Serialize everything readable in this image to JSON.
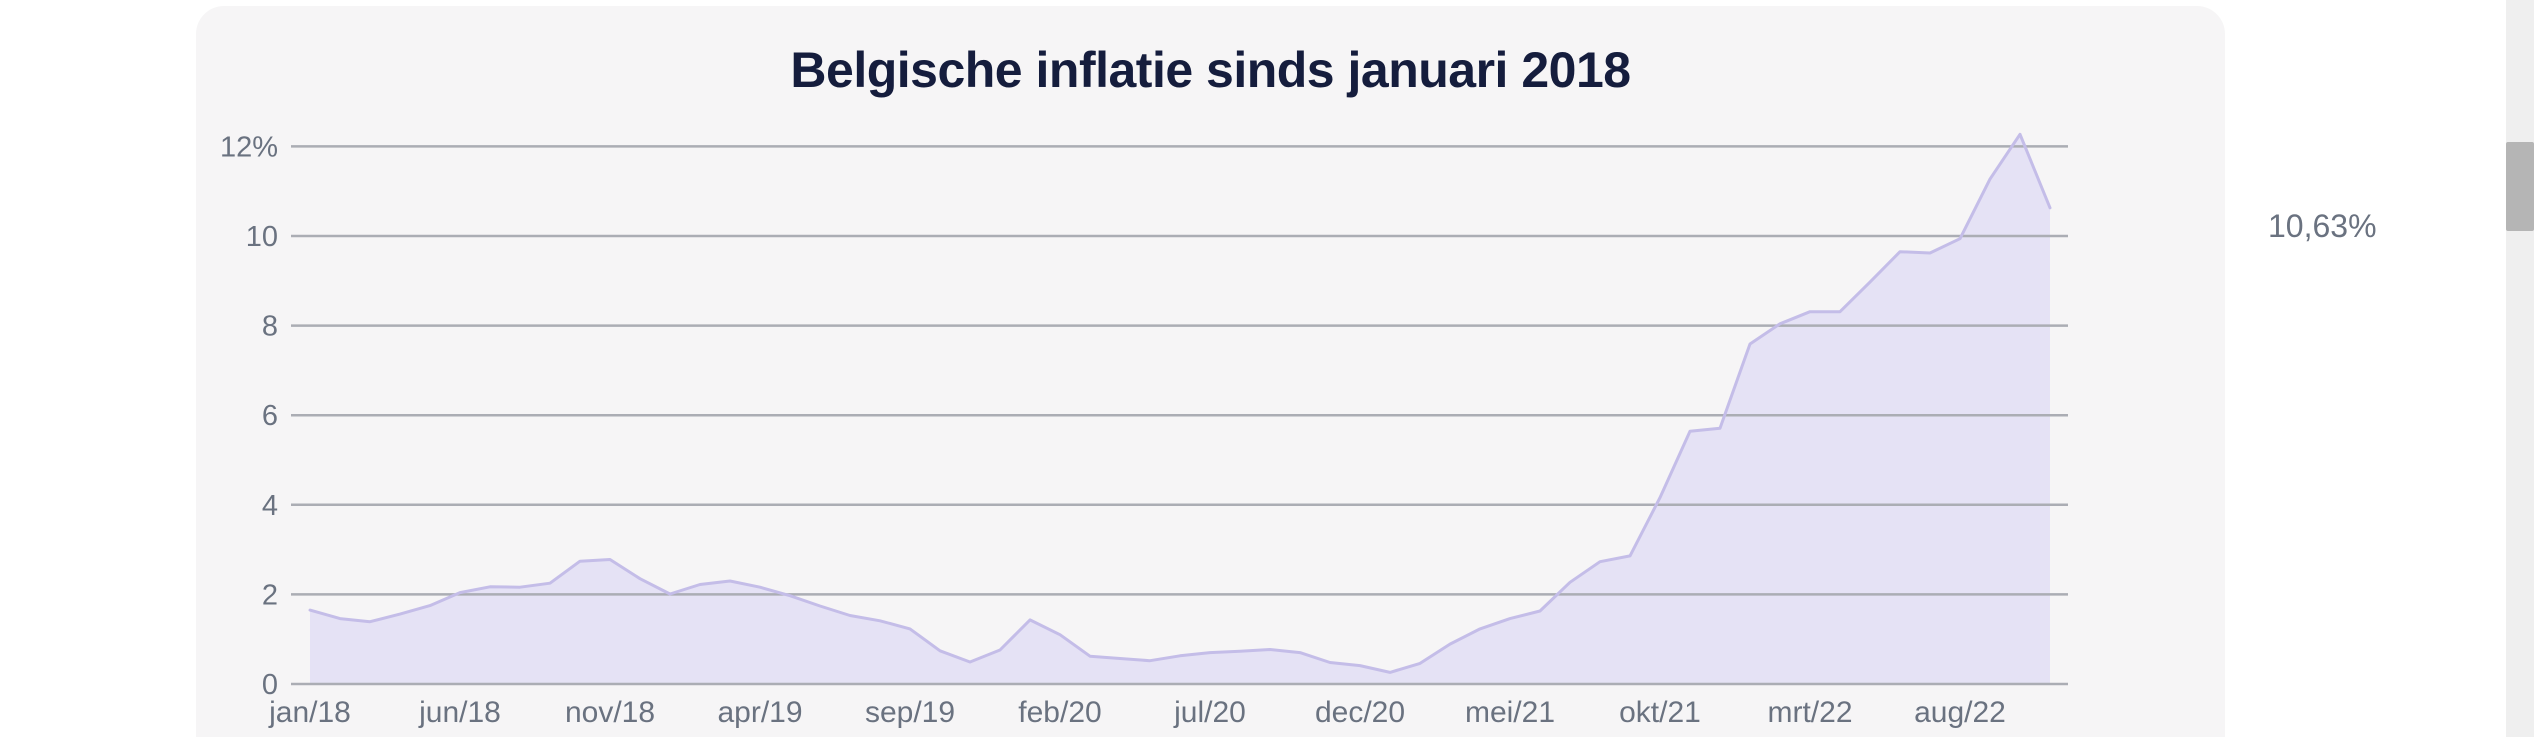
{
  "title": "Belgische inflatie sinds januari 2018",
  "annotation": {
    "last_value_label": "10,63%"
  },
  "colors": {
    "page_background": "#ffffff",
    "card_background": "#f6f5f6",
    "title_text": "#151d3d",
    "axis_text": "#6a7280",
    "gridline": "#abadb4",
    "area_fill": "#e5e2f5",
    "area_line": "#c4bde8",
    "scrollbar_track": "#efefef",
    "scrollbar_thumb": "#b5b5b5"
  },
  "chart_data": {
    "type": "area",
    "title": "Belgische inflatie sinds januari 2018",
    "xlabel": "",
    "ylabel": "",
    "grid": true,
    "ylim": [
      0,
      12.6
    ],
    "x": [
      "jan/18",
      "feb/18",
      "mrt/18",
      "apr/18",
      "mei/18",
      "jun/18",
      "jul/18",
      "aug/18",
      "sep/18",
      "okt/18",
      "nov/18",
      "dec/18",
      "jan/19",
      "feb/19",
      "mrt/19",
      "apr/19",
      "mei/19",
      "jun/19",
      "jul/19",
      "aug/19",
      "sep/19",
      "okt/19",
      "nov/19",
      "dec/19",
      "jan/20",
      "feb/20",
      "mrt/20",
      "apr/20",
      "mei/20",
      "jun/20",
      "jul/20",
      "aug/20",
      "sep/20",
      "okt/20",
      "nov/20",
      "dec/20",
      "jan/21",
      "feb/21",
      "mrt/21",
      "apr/21",
      "mei/21",
      "jun/21",
      "jul/21",
      "aug/21",
      "sep/21",
      "okt/21",
      "nov/21",
      "dec/21",
      "jan/22",
      "feb/22",
      "mrt/22",
      "apr/22",
      "mei/22",
      "jun/22",
      "jul/22",
      "aug/22",
      "sep/22",
      "okt/22",
      "nov/22"
    ],
    "values": [
      1.65,
      1.46,
      1.39,
      1.56,
      1.75,
      2.04,
      2.17,
      2.16,
      2.25,
      2.74,
      2.78,
      2.35,
      2.01,
      2.22,
      2.3,
      2.16,
      1.97,
      1.74,
      1.53,
      1.41,
      1.23,
      0.74,
      0.49,
      0.76,
      1.43,
      1.1,
      0.62,
      0.57,
      0.52,
      0.63,
      0.7,
      0.73,
      0.77,
      0.7,
      0.48,
      0.41,
      0.26,
      0.46,
      0.89,
      1.23,
      1.46,
      1.63,
      2.27,
      2.73,
      2.86,
      4.16,
      5.64,
      5.71,
      7.59,
      8.04,
      8.31,
      8.31,
      8.97,
      9.65,
      9.62,
      9.94,
      11.27,
      12.27,
      10.63
    ],
    "x_ticks": [
      {
        "index": 0,
        "label": "jan/18"
      },
      {
        "index": 5,
        "label": "jun/18"
      },
      {
        "index": 10,
        "label": "nov/18"
      },
      {
        "index": 15,
        "label": "apr/19"
      },
      {
        "index": 20,
        "label": "sep/19"
      },
      {
        "index": 25,
        "label": "feb/20"
      },
      {
        "index": 30,
        "label": "jul/20"
      },
      {
        "index": 35,
        "label": "dec/20"
      },
      {
        "index": 40,
        "label": "mei/21"
      },
      {
        "index": 45,
        "label": "okt/21"
      },
      {
        "index": 50,
        "label": "mrt/22"
      },
      {
        "index": 55,
        "label": "aug/22"
      }
    ],
    "y_ticks": [
      {
        "value": 0,
        "label": "0"
      },
      {
        "value": 2,
        "label": "2"
      },
      {
        "value": 4,
        "label": "4"
      },
      {
        "value": 6,
        "label": "6"
      },
      {
        "value": 8,
        "label": "8"
      },
      {
        "value": 10,
        "label": "10"
      },
      {
        "value": 12,
        "label": "12%"
      }
    ],
    "last_value_label": "10,63%",
    "legend": null
  }
}
